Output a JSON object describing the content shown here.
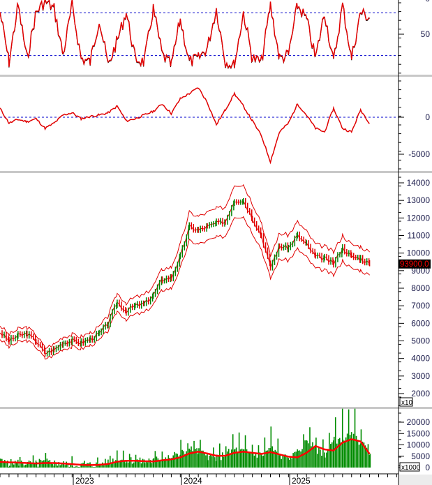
{
  "chart_data": [
    {
      "panel": "oscillator",
      "type": "line",
      "ylim": [
        0,
        100
      ],
      "yticks": [
        "50",
        "0"
      ],
      "reference_lines": [
        20,
        80
      ],
      "x": [
        "2022-05",
        "2022-06",
        "2022-07",
        "2022-08",
        "2022-09",
        "2022-10",
        "2022-11",
        "2022-12",
        "2023-01",
        "2023-02",
        "2023-03",
        "2023-04",
        "2023-05",
        "2023-06",
        "2023-07",
        "2023-08",
        "2023-09",
        "2023-10",
        "2023-11",
        "2023-12",
        "2024-01",
        "2024-02",
        "2024-03",
        "2024-04",
        "2024-05",
        "2024-06",
        "2024-07",
        "2024-08",
        "2024-09",
        "2024-10",
        "2024-11",
        "2024-12",
        "2025-01",
        "2025-02",
        "2025-03",
        "2025-04",
        "2025-05",
        "2025-06",
        "2025-07",
        "2025-08",
        "2025-09",
        "2025-10"
      ],
      "values": [
        20,
        90,
        10,
        85,
        20,
        5,
        15,
        80,
        10,
        85,
        90,
        30,
        95,
        60,
        20,
        85,
        90,
        15,
        80,
        95,
        30,
        90,
        85,
        70,
        15,
        90,
        95,
        20,
        85,
        90,
        10,
        85,
        80,
        10,
        30,
        85,
        20,
        90,
        10,
        85,
        20,
        28
      ],
      "colors": {
        "line": "#e00000",
        "reference": "#0000cc"
      }
    },
    {
      "panel": "momentum",
      "type": "line",
      "ylim": [
        -7000,
        5000
      ],
      "yticks": [
        "0",
        "-5000"
      ],
      "reference_lines": [
        0
      ],
      "x": [
        "2022-05",
        "2022-06",
        "2022-07",
        "2022-08",
        "2022-09",
        "2022-10",
        "2022-11",
        "2022-12",
        "2023-01",
        "2023-02",
        "2023-03",
        "2023-04",
        "2023-05",
        "2023-06",
        "2023-07",
        "2023-08",
        "2023-09",
        "2023-10",
        "2023-11",
        "2023-12",
        "2024-01",
        "2024-02",
        "2024-03",
        "2024-04",
        "2024-05",
        "2024-06",
        "2024-07",
        "2024-08",
        "2024-09",
        "2024-10",
        "2024-11",
        "2024-12",
        "2025-01",
        "2025-02",
        "2025-03",
        "2025-04",
        "2025-05",
        "2025-06",
        "2025-07",
        "2025-08",
        "2025-09",
        "2025-10"
      ],
      "values": [
        1200,
        -800,
        -300,
        -600,
        -200,
        -1500,
        -800,
        300,
        600,
        -200,
        100,
        300,
        600,
        1500,
        -500,
        -200,
        300,
        800,
        1800,
        500,
        2500,
        3200,
        4000,
        2000,
        -1000,
        1000,
        3200,
        1500,
        -500,
        -2500,
        -6000,
        -2000,
        -800,
        1800,
        300,
        -1500,
        -2000,
        1200,
        -1500,
        -2000,
        1000,
        -800
      ],
      "colors": {
        "line": "#e00000",
        "reference": "#0000cc"
      }
    },
    {
      "panel": "price",
      "type": "line",
      "ylim": [
        1500,
        14300
      ],
      "yticks": [
        "14000",
        "13000",
        "12000",
        "11000",
        "10000",
        "9000",
        "8000",
        "7000",
        "6000",
        "5000",
        "4000",
        "3000",
        "2000"
      ],
      "last_value_label": "93900.0",
      "scale_label": "x10",
      "x": [
        "2022-05",
        "2022-06",
        "2022-07",
        "2022-08",
        "2022-09",
        "2022-10",
        "2022-11",
        "2022-12",
        "2023-01",
        "2023-02",
        "2023-03",
        "2023-04",
        "2023-05",
        "2023-06",
        "2023-07",
        "2023-08",
        "2023-09",
        "2023-10",
        "2023-11",
        "2023-12",
        "2024-01",
        "2024-02",
        "2024-03",
        "2024-04",
        "2024-05",
        "2024-06",
        "2024-07",
        "2024-08",
        "2024-09",
        "2024-10",
        "2024-11",
        "2024-12",
        "2025-01",
        "2025-02",
        "2025-03",
        "2025-04",
        "2025-05",
        "2025-06",
        "2025-07",
        "2025-08",
        "2025-09",
        "2025-10"
      ],
      "values": [
        5500,
        5000,
        5300,
        5400,
        5000,
        4300,
        4500,
        4900,
        5000,
        4900,
        5100,
        5400,
        6000,
        7200,
        6700,
        7000,
        7100,
        7600,
        8500,
        8600,
        9800,
        11500,
        11300,
        11500,
        11700,
        11800,
        13000,
        13000,
        12000,
        11000,
        9200,
        10400,
        10300,
        11000,
        10500,
        9800,
        9700,
        9400,
        10300,
        9800,
        9700,
        9400
      ],
      "colors": {
        "up": "#008000",
        "down": "#e00000",
        "band": "#e00000",
        "label_bg": "#000000",
        "label_text": "#ff0000"
      }
    },
    {
      "panel": "volume",
      "type": "bar",
      "ylim": [
        0,
        24000
      ],
      "yticks": [
        "20000",
        "15000",
        "10000",
        "5000",
        "0"
      ],
      "scale_label": "x1000",
      "x": [
        "2022-05",
        "2022-06",
        "2022-07",
        "2022-08",
        "2022-09",
        "2022-10",
        "2022-11",
        "2022-12",
        "2023-01",
        "2023-02",
        "2023-03",
        "2023-04",
        "2023-05",
        "2023-06",
        "2023-07",
        "2023-08",
        "2023-09",
        "2023-10",
        "2023-11",
        "2023-12",
        "2024-01",
        "2024-02",
        "2024-03",
        "2024-04",
        "2024-05",
        "2024-06",
        "2024-07",
        "2024-08",
        "2024-09",
        "2024-10",
        "2024-11",
        "2024-12",
        "2025-01",
        "2025-02",
        "2025-03",
        "2025-04",
        "2025-05",
        "2025-06",
        "2025-07",
        "2025-08",
        "2025-09",
        "2025-10"
      ],
      "values": [
        2500,
        2000,
        2200,
        1800,
        1500,
        2500,
        2000,
        1500,
        1200,
        1000,
        1200,
        1500,
        2500,
        4000,
        3500,
        3000,
        2500,
        3000,
        4500,
        4000,
        6000,
        8000,
        7000,
        5000,
        4000,
        6000,
        8000,
        7000,
        6000,
        5500,
        9000,
        5000,
        4000,
        6000,
        12000,
        8000,
        6000,
        12000,
        13000,
        14000,
        11000,
        6000
      ],
      "moving_average": [
        2500,
        2300,
        2200,
        2000,
        1800,
        2000,
        2000,
        1800,
        1500,
        1200,
        1100,
        1200,
        1600,
        2600,
        3000,
        3000,
        2800,
        2700,
        3200,
        3600,
        4500,
        6200,
        7000,
        6200,
        5200,
        5200,
        6500,
        7000,
        6500,
        6000,
        6800,
        5800,
        4800,
        4500,
        6500,
        9500,
        8000,
        7500,
        11000,
        12500,
        11500,
        6000
      ],
      "colors": {
        "bar": "#008c00",
        "ma": "#ff0000"
      }
    }
  ],
  "x_axis": {
    "labels": [
      "2023",
      "2024",
      "2025"
    ]
  }
}
